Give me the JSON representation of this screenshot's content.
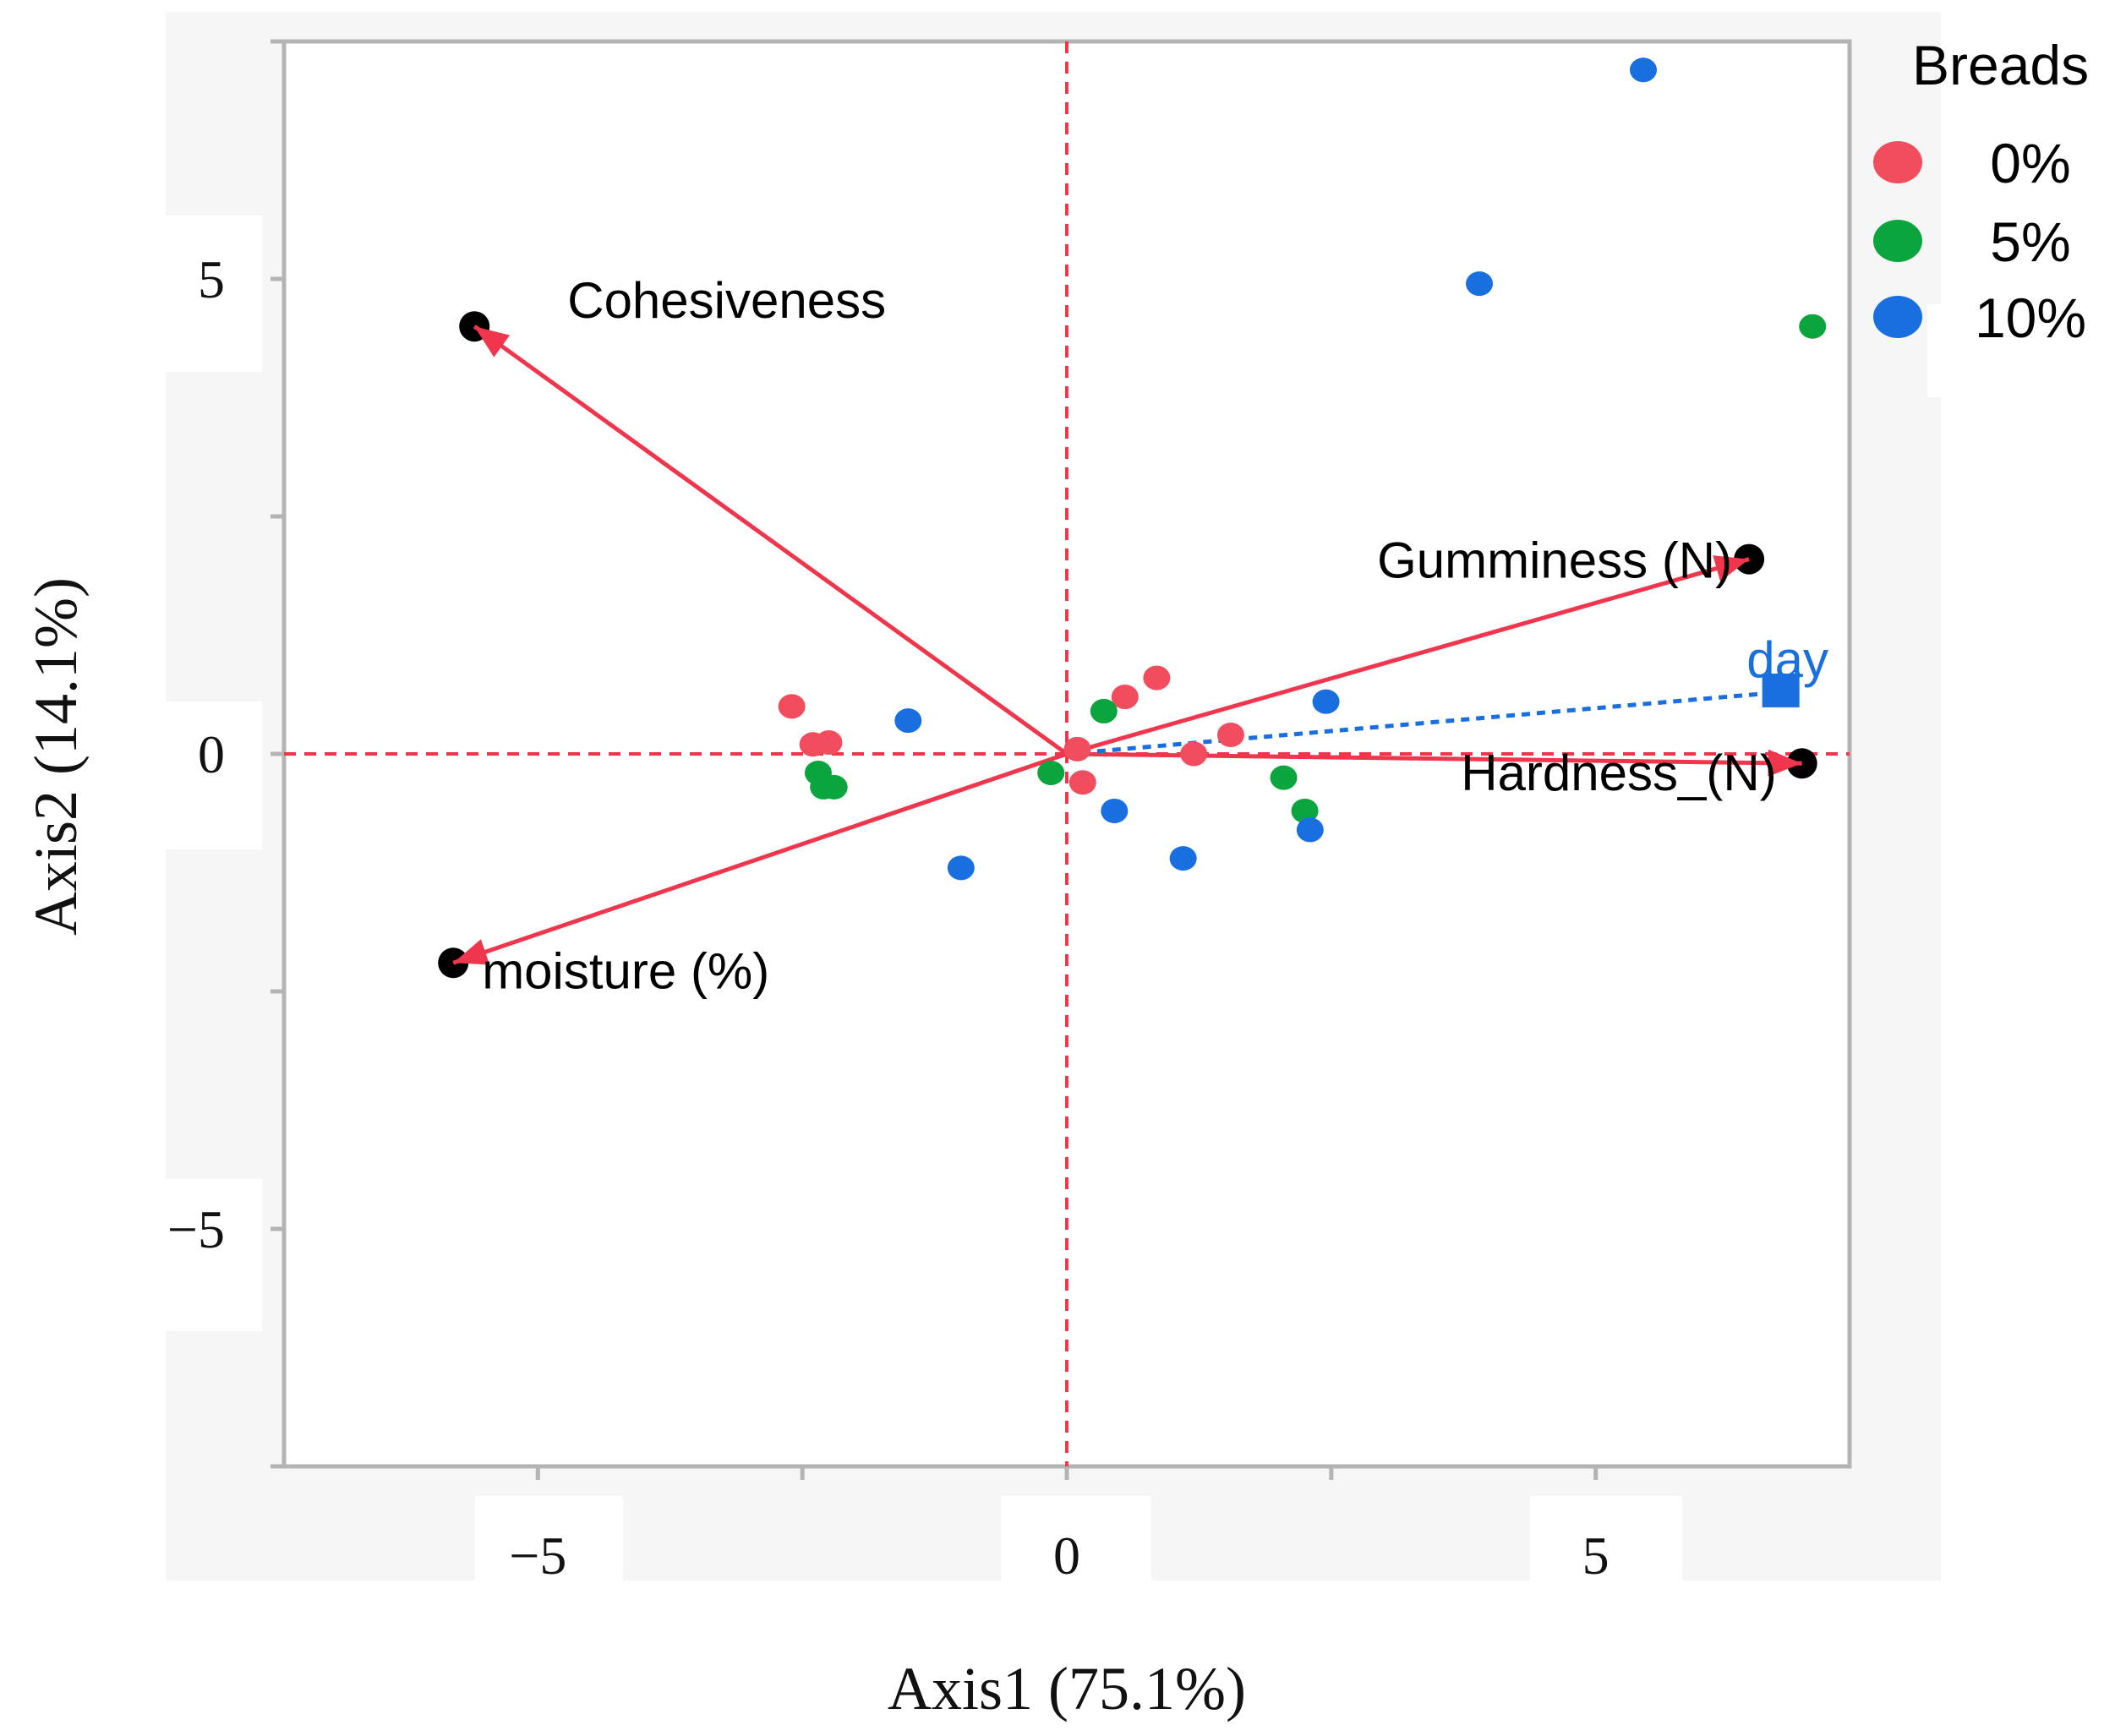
{
  "chart_data": {
    "type": "scatter",
    "subtype": "pca-biplot",
    "xlabel": "Axis1 (75.1%)",
    "ylabel": "Axis2 (14.1%)",
    "xlim": [
      -7.4,
      7.4
    ],
    "ylim": [
      -7.5,
      7.5
    ],
    "x_ticks": [
      -5,
      0,
      5
    ],
    "y_ticks": [
      -5,
      0,
      5
    ],
    "x_tick_labels": [
      "−5",
      "0",
      "5"
    ],
    "y_tick_labels": [
      "−5",
      "0",
      "5"
    ],
    "reference_lines": {
      "x": 0,
      "y": 0,
      "color": "#f0364d"
    },
    "legend": {
      "title": "Breads",
      "position": "top-right",
      "entries": [
        {
          "label": "0%",
          "color": "#f24d5e"
        },
        {
          "label": "5%",
          "color": "#0aa53c"
        },
        {
          "label": "10%",
          "color": "#1a6fe0"
        }
      ]
    },
    "series": [
      {
        "name": "0%",
        "color": "#f24d5e",
        "points": [
          {
            "x": -2.6,
            "y": 0.5
          },
          {
            "x": -2.4,
            "y": 0.1
          },
          {
            "x": -2.25,
            "y": 0.12
          },
          {
            "x": 0.1,
            "y": 0.05
          },
          {
            "x": 0.15,
            "y": -0.3
          },
          {
            "x": 0.55,
            "y": 0.6
          },
          {
            "x": 0.85,
            "y": 0.8
          },
          {
            "x": 1.2,
            "y": 0.0
          },
          {
            "x": 1.55,
            "y": 0.2
          }
        ]
      },
      {
        "name": "5%",
        "color": "#0aa53c",
        "points": [
          {
            "x": -2.35,
            "y": -0.2
          },
          {
            "x": -2.3,
            "y": -0.35
          },
          {
            "x": -2.2,
            "y": -0.35
          },
          {
            "x": -0.15,
            "y": -0.2
          },
          {
            "x": 0.35,
            "y": 0.45
          },
          {
            "x": 2.05,
            "y": -0.25
          },
          {
            "x": 2.25,
            "y": -0.6
          },
          {
            "x": 7.05,
            "y": 4.5
          }
        ]
      },
      {
        "name": "10%",
        "color": "#1a6fe0",
        "points": [
          {
            "x": -1.5,
            "y": 0.35
          },
          {
            "x": -1.0,
            "y": -1.2
          },
          {
            "x": 0.45,
            "y": -0.6
          },
          {
            "x": 1.1,
            "y": -1.1
          },
          {
            "x": 2.3,
            "y": -0.8
          },
          {
            "x": 2.45,
            "y": 0.55
          },
          {
            "x": 3.9,
            "y": 4.95
          },
          {
            "x": 5.45,
            "y": 7.2
          }
        ]
      }
    ],
    "loadings": [
      {
        "label": "Cohesiveness",
        "x": -5.6,
        "y": 4.5,
        "color": "#f0364d"
      },
      {
        "label": "Gumminess (N)",
        "x": 6.45,
        "y": 2.05,
        "color": "#f0364d"
      },
      {
        "label": "Hardness_(N)",
        "x": 6.95,
        "y": -0.1,
        "color": "#f0364d"
      },
      {
        "label": "moisture (%)",
        "x": -5.8,
        "y": -2.2,
        "color": "#f0364d"
      }
    ],
    "supplementary": [
      {
        "label": "day",
        "x": 6.75,
        "y": 0.65,
        "color": "#1a6fe0"
      }
    ]
  }
}
